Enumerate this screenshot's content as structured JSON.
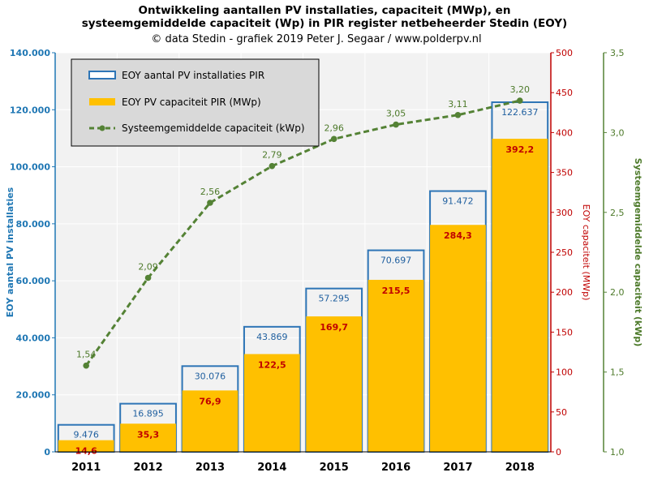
{
  "chart_data": {
    "type": "bar",
    "title_lines": [
      "Ontwikkeling aantallen PV installaties, capaciteit (MWp), en",
      "systeemgemiddelde capaciteit (Wp) in PIR register netbeheerder Stedin (EOY)"
    ],
    "subtitle": "© data Stedin - grafiek  2019 Peter J. Segaar / www.polderpv.nl",
    "categories": [
      "2011",
      "2012",
      "2013",
      "2014",
      "2015",
      "2016",
      "2017",
      "2018"
    ],
    "series": [
      {
        "name": "EOY aantal PV installaties PIR",
        "axis": "left",
        "render": "outline-bar",
        "values": [
          9476,
          16895,
          30076,
          43869,
          57295,
          70697,
          91472,
          122637
        ],
        "labels": [
          "9.476",
          "16.895",
          "30.076",
          "43.869",
          "57.295",
          "70.697",
          "91.472",
          "122.637"
        ]
      },
      {
        "name": "EOY PV capaciteit PIR (MWp)",
        "axis": "middle",
        "render": "filled-bar",
        "values": [
          14.6,
          35.3,
          76.9,
          122.5,
          169.7,
          215.5,
          284.3,
          392.2
        ],
        "labels": [
          "14,6",
          "35,3",
          "76,9",
          "122,5",
          "169,7",
          "215,5",
          "284,3",
          "392,2"
        ]
      },
      {
        "name": "Systeemgemiddelde capaciteit (kWp)",
        "axis": "right",
        "render": "dashed-line",
        "values": [
          1.54,
          2.09,
          2.56,
          2.79,
          2.96,
          3.05,
          3.11,
          3.2
        ],
        "labels": [
          "1,54",
          "2,09",
          "2,56",
          "2,79",
          "2,96",
          "3,05",
          "3,11",
          "3,20"
        ]
      }
    ],
    "axes": {
      "left": {
        "label": "EOY aantal PV installaties",
        "ylim": [
          0,
          140000
        ],
        "ticks": [
          "0",
          "20.000",
          "40.000",
          "60.000",
          "80.000",
          "100.000",
          "120.000",
          "140.000"
        ]
      },
      "middle": {
        "label": "EOY capaciteit (MWp)",
        "ylim": [
          0,
          500
        ],
        "ticks": [
          "0",
          "50",
          "100",
          "150",
          "200",
          "250",
          "300",
          "350",
          "400",
          "450",
          "500"
        ]
      },
      "right": {
        "label": "Systeemgemiddelde capaciteit (kWp)",
        "ylim": [
          1.0,
          3.5
        ],
        "ticks": [
          "1,0",
          "1,5",
          "2,0",
          "2,5",
          "3,0",
          "3,5"
        ]
      }
    },
    "grid": true,
    "legend_position": "top-left",
    "colors": {
      "count": "#2e75b6",
      "capacity": "#ffc000",
      "capacity_label": "#c00000",
      "average": "#548235",
      "plot_bg": "#f2f2f2",
      "legend_bg": "#d9d9d9"
    }
  }
}
